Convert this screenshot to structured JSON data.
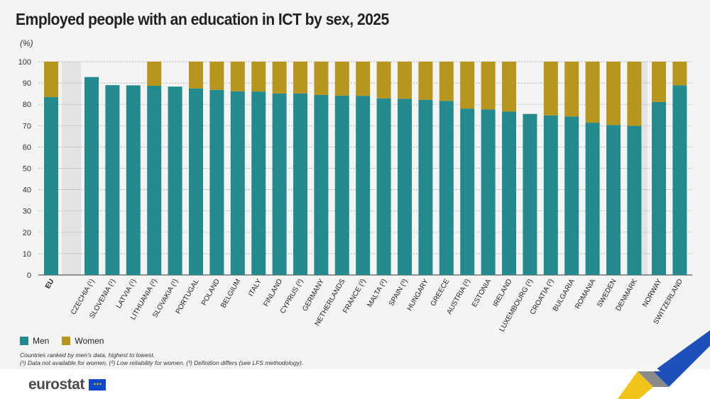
{
  "title": "Employed people with an education in ICT by sex, 2025",
  "unit": "(%)",
  "colors": {
    "men": "#238a8d",
    "women": "#b7961f",
    "grid": "#9a9a9a",
    "band": "#e3e3e3"
  },
  "legend": {
    "men": "Men",
    "women": "Women"
  },
  "notes": {
    "line1": "Countries ranked by men's data, highest to lowest.",
    "line2": "(¹) Data not available for women. (²) Low reliability for women. (³) Definition differs (see LFS methodology)."
  },
  "logo": {
    "text": "eurostat"
  },
  "chart_data": {
    "type": "bar",
    "stacked": true,
    "title": "Employed people with an education in ICT by sex, 2025",
    "ylabel": "(%)",
    "ylim": [
      0,
      100
    ],
    "yticks": [
      0,
      10,
      20,
      30,
      40,
      50,
      60,
      70,
      80,
      90,
      100
    ],
    "grid": true,
    "legend_position": "bottom-left",
    "groups": [
      {
        "categories": [
          "EU"
        ]
      },
      {
        "categories": [
          "CZECHIA (¹)",
          "SLOVENIA (¹)",
          "LATVIA (¹)",
          "LITHUANIA (²)",
          "SLOVAKIA (¹)",
          "PORTUGAL",
          "POLAND",
          "BELGIUM",
          "ITALY",
          "FINLAND",
          "CYPRUS (²)",
          "GERMANY",
          "NETHERLANDS",
          "FRANCE (³)",
          "MALTA (²)",
          "SPAIN (³)",
          "HUNGARY",
          "GREECE",
          "AUSTRIA (²)",
          "ESTONIA",
          "IRELAND",
          "LUXEMBOURG (²)",
          "CROATIA (²)",
          "BULGARIA",
          "ROMANIA",
          "SWEDEN",
          "DENMARK"
        ]
      },
      {
        "categories": [
          "NORWAY",
          "SWITZERLAND"
        ]
      }
    ],
    "categories": [
      "EU",
      "CZECHIA (¹)",
      "SLOVENIA (¹)",
      "LATVIA (¹)",
      "LITHUANIA (²)",
      "SLOVAKIA (¹)",
      "PORTUGAL",
      "POLAND",
      "BELGIUM",
      "ITALY",
      "FINLAND",
      "CYPRUS (²)",
      "GERMANY",
      "NETHERLANDS",
      "FRANCE (³)",
      "MALTA (²)",
      "SPAIN (³)",
      "HUNGARY",
      "GREECE",
      "AUSTRIA (²)",
      "ESTONIA",
      "IRELAND",
      "LUXEMBOURG (²)",
      "CROATIA (²)",
      "BULGARIA",
      "ROMANIA",
      "SWEDEN",
      "DENMARK",
      "NORWAY",
      "SWITZERLAND"
    ],
    "series": [
      {
        "name": "Men",
        "values": [
          83.4,
          92.8,
          89.0,
          88.9,
          88.7,
          88.3,
          87.4,
          86.8,
          86.1,
          86.0,
          85.1,
          85.1,
          84.4,
          84.1,
          84.0,
          82.8,
          82.6,
          82.1,
          81.6,
          78.0,
          77.6,
          76.6,
          75.5,
          74.8,
          74.3,
          71.4,
          70.3,
          69.9,
          81.1,
          88.9
        ]
      },
      {
        "name": "Women",
        "values": [
          16.6,
          null,
          null,
          null,
          11.3,
          null,
          12.6,
          13.2,
          13.9,
          14.0,
          14.9,
          14.9,
          15.6,
          15.9,
          16.0,
          17.2,
          17.4,
          17.9,
          18.4,
          22.0,
          22.4,
          23.4,
          null,
          25.2,
          25.7,
          28.6,
          29.7,
          30.1,
          18.9,
          11.1
        ]
      }
    ]
  }
}
